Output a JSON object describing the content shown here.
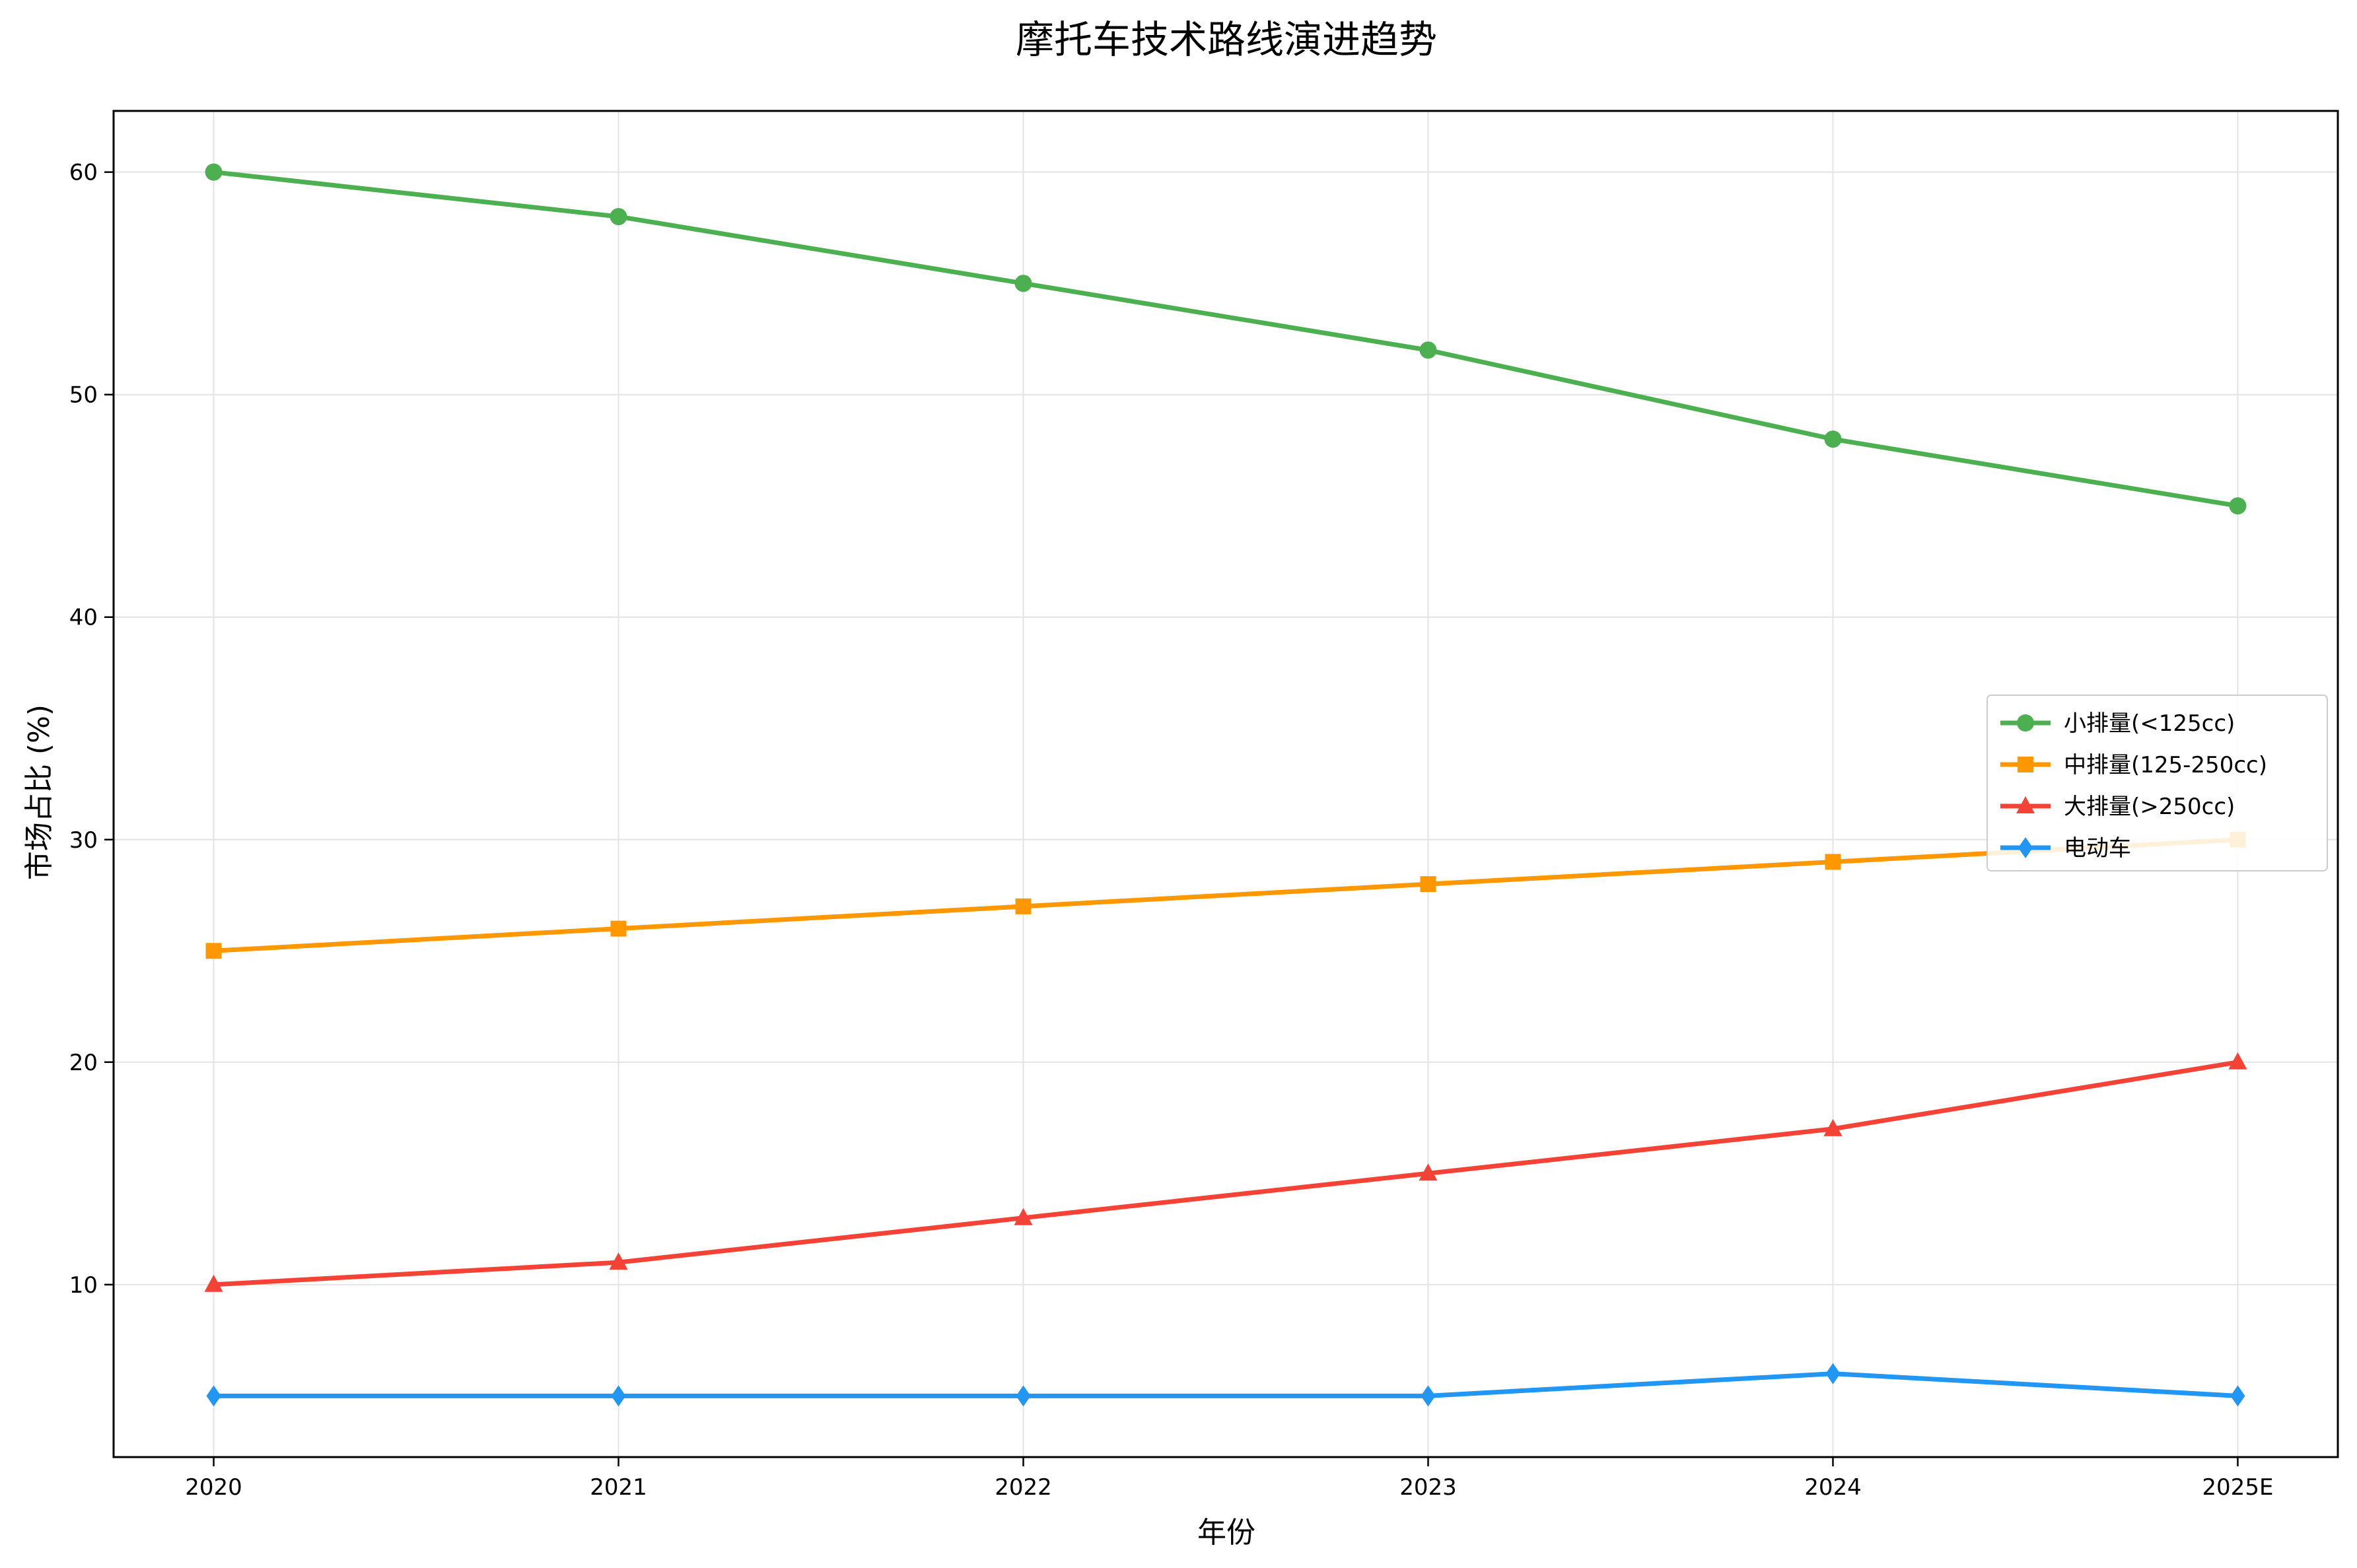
{
  "chart_data": {
    "type": "line",
    "title": "摩托车技术路线演进趋势",
    "xlabel": "年份",
    "ylabel": "市场占比 (%)",
    "categories": [
      "2020",
      "2021",
      "2022",
      "2023",
      "2024",
      "2025E"
    ],
    "ylim": [
      2.25,
      62.75
    ],
    "yticks": [
      10,
      20,
      30,
      40,
      50,
      60
    ],
    "grid": true,
    "legend_position": "center-right",
    "series": [
      {
        "name": "小排量(<125cc)",
        "color": "#4caf50",
        "marker": "circle",
        "values": [
          60,
          58,
          55,
          52,
          48,
          45
        ]
      },
      {
        "name": "中排量(125-250cc)",
        "color": "#ff9800",
        "marker": "square",
        "values": [
          25,
          26,
          27,
          28,
          29,
          30
        ]
      },
      {
        "name": "大排量(>250cc)",
        "color": "#f44336",
        "marker": "triangle",
        "values": [
          10,
          11,
          13,
          15,
          17,
          20
        ]
      },
      {
        "name": "电动车",
        "color": "#2196f3",
        "marker": "diamond",
        "values": [
          5,
          5,
          5,
          5,
          6,
          5
        ]
      }
    ]
  }
}
